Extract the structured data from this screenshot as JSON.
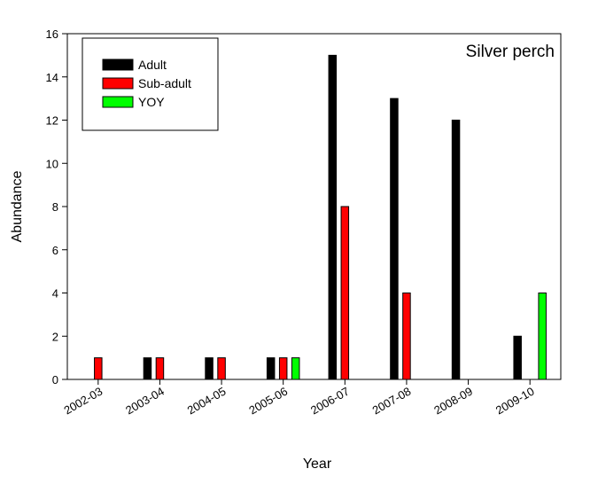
{
  "chart_data": {
    "type": "bar",
    "title": "Silver perch",
    "xlabel": "Year",
    "ylabel": "Abundance",
    "ylim": [
      0,
      16
    ],
    "yticks": [
      "0",
      "2",
      "4",
      "6",
      "8",
      "10",
      "12",
      "14",
      "16"
    ],
    "categories": [
      "2002-03",
      "2003-04",
      "2004-05",
      "2005-06",
      "2006-07",
      "2007-08",
      "2008-09",
      "2009-10"
    ],
    "series": [
      {
        "name": "Adult",
        "color": "#000000",
        "values": [
          0,
          1,
          1,
          1,
          15,
          13,
          12,
          2
        ]
      },
      {
        "name": "Sub-adult",
        "color": "#ff0000",
        "values": [
          1,
          1,
          1,
          1,
          8,
          4,
          0,
          0
        ]
      },
      {
        "name": "YOY",
        "color": "#00ff00",
        "values": [
          0,
          0,
          0,
          1,
          0,
          0,
          0,
          4
        ]
      }
    ],
    "legend_position": "top-left",
    "grid": false
  }
}
